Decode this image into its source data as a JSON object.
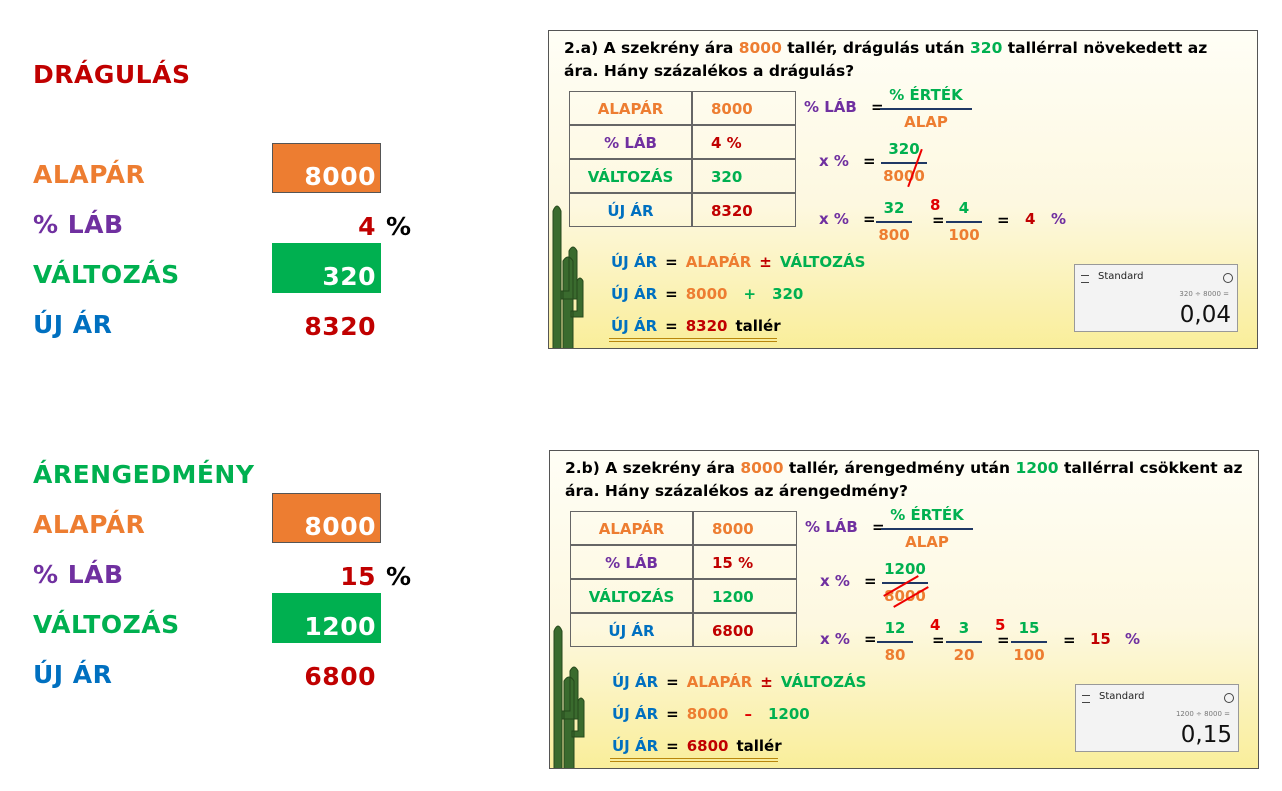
{
  "sections": [
    {
      "title": "DRÁGULÁS",
      "rows": [
        {
          "label": "ALAPÁR",
          "value": "8000"
        },
        {
          "label": "% LÁB",
          "value": "4",
          "unit": "%"
        },
        {
          "label": "VÁLTOZÁS",
          "value": "320"
        },
        {
          "label": "ÚJ ÁR",
          "value": "8320"
        }
      ],
      "panel": {
        "question": [
          "2.a) A szekrény ára ",
          "8000",
          " tallér, drágulás után ",
          "320",
          " tallérral növekedett az ára. Hány százalékos a drágulás?"
        ],
        "table": [
          [
            "ALAPÁR",
            "8000"
          ],
          [
            "% LÁB",
            "4 %"
          ],
          [
            "VÁLTOZÁS",
            "320"
          ],
          [
            "ÚJ ÁR",
            "8320"
          ]
        ],
        "formula": {
          "lhs": "% LÁB",
          "eq": "=",
          "num": "% ÉRTÉK",
          "den": "ALAP"
        },
        "substitution": {
          "lhs": "x %",
          "eq": "=",
          "num": "320",
          "den": "8000"
        },
        "simplification": {
          "lhs": "x %",
          "eq": "=",
          "steps": [
            {
              "num": "32",
              "den": "800"
            },
            {
              "factor": "8",
              "num": "4",
              "den": "100"
            }
          ],
          "result": "4",
          "unit": "%"
        },
        "new_price": {
          "lhs": "ÚJ ÁR",
          "eq": "=",
          "lines": [
            [
              "ALAPÁR",
              "±",
              "VÁLTOZÁS"
            ],
            [
              "8000",
              "+",
              "320"
            ],
            [
              "8320",
              "tallér"
            ]
          ]
        },
        "calculator": {
          "mode": "Standard",
          "expression": "320 ÷ 8000 =",
          "result": "0,04"
        }
      }
    },
    {
      "title": "ÁRENGEDMÉNY",
      "rows": [
        {
          "label": "ALAPÁR",
          "value": "8000"
        },
        {
          "label": "% LÁB",
          "value": "15",
          "unit": "%"
        },
        {
          "label": "VÁLTOZÁS",
          "value": "1200"
        },
        {
          "label": "ÚJ ÁR",
          "value": "6800"
        }
      ],
      "panel": {
        "question": [
          "2.b) A szekrény ára ",
          "8000",
          " tallér, árengedmény után ",
          "1200",
          " tallérral csökkent az ára. Hány százalékos az árengedmény?"
        ],
        "table": [
          [
            "ALAPÁR",
            "8000"
          ],
          [
            "% LÁB",
            "15 %"
          ],
          [
            "VÁLTOZÁS",
            "1200"
          ],
          [
            "ÚJ ÁR",
            "6800"
          ]
        ],
        "formula": {
          "lhs": "% LÁB",
          "eq": "=",
          "num": "% ÉRTÉK",
          "den": "ALAP"
        },
        "substitution": {
          "lhs": "x %",
          "eq": "=",
          "num": "1200",
          "den": "8000"
        },
        "simplification": {
          "lhs": "x %",
          "eq": "=",
          "steps": [
            {
              "num": "12",
              "den": "80"
            },
            {
              "factor": "4",
              "num": "3",
              "den": "20"
            },
            {
              "factor": "5",
              "num": "15",
              "den": "100"
            }
          ],
          "result": "15",
          "unit": "%"
        },
        "new_price": {
          "lhs": "ÚJ ÁR",
          "eq": "=",
          "lines": [
            [
              "ALAPÁR",
              "±",
              "VÁLTOZÁS"
            ],
            [
              "8000",
              "–",
              "1200"
            ],
            [
              "6800",
              "tallér"
            ]
          ]
        },
        "calculator": {
          "mode": "Standard",
          "expression": "1200 ÷ 8000 =",
          "result": "0,15"
        }
      }
    }
  ]
}
